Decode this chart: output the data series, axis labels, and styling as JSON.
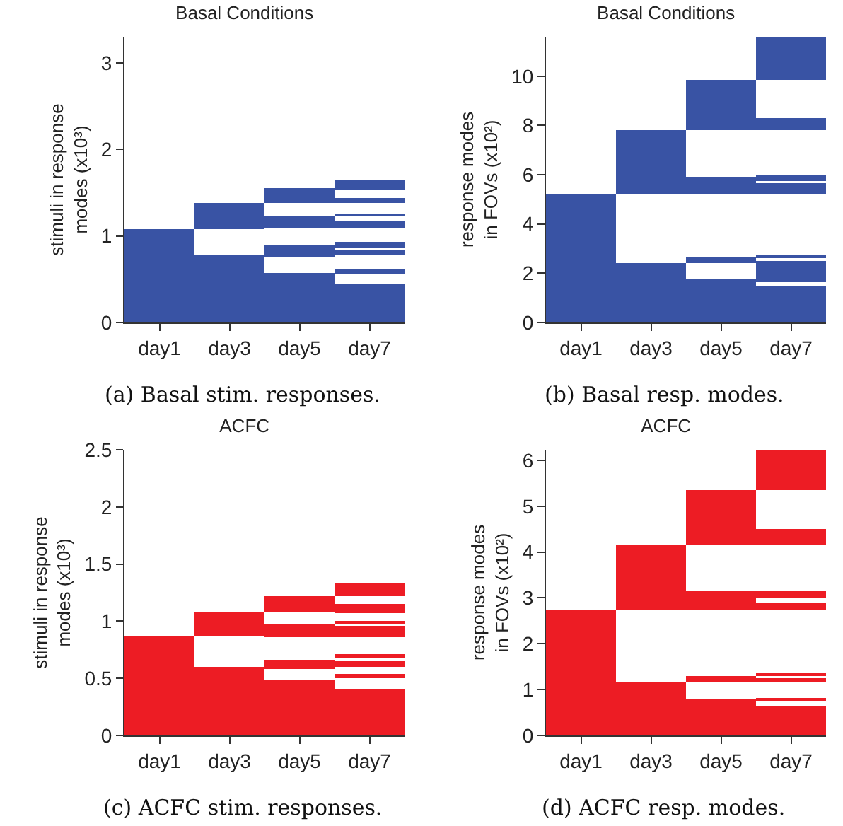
{
  "chart_data": [
    {
      "type": "bar",
      "title": "Basal Conditions",
      "ylabel": "stimuli in response\nmodes (x10³)",
      "categories": [
        "day1",
        "day3",
        "day5",
        "day7"
      ],
      "ylim": [
        0,
        3.3
      ],
      "yticks": [
        0,
        1,
        2,
        3
      ],
      "annotations": [
        "(a) Basal stim. responses."
      ],
      "series": [
        {
          "color": "#3953a4",
          "base": [
            0,
            0,
            0,
            0
          ],
          "values": [
            1.08,
            0.78,
            0.57,
            0.44
          ]
        },
        {
          "color": "#3953a4",
          "base": [
            null,
            1.08,
            0.76,
            0.56
          ],
          "values": [
            null,
            0.3,
            0.13,
            0.06
          ]
        },
        {
          "color": "#3953a4",
          "base": [
            null,
            null,
            1.09,
            0.78
          ],
          "values": [
            null,
            null,
            0.14,
            0.06
          ]
        },
        {
          "color": "#3953a4",
          "base": [
            null,
            null,
            1.38,
            0.87
          ],
          "values": [
            null,
            null,
            0.17,
            0.06
          ]
        },
        {
          "color": "#3953a4",
          "base": [
            null,
            null,
            null,
            1.09
          ],
          "values": [
            null,
            null,
            null,
            0.09
          ]
        },
        {
          "color": "#3953a4",
          "base": [
            null,
            null,
            null,
            1.23
          ],
          "values": [
            null,
            null,
            null,
            0.03
          ]
        },
        {
          "color": "#3953a4",
          "base": [
            null,
            null,
            null,
            1.38
          ],
          "values": [
            null,
            null,
            null,
            0.06
          ]
        },
        {
          "color": "#3953a4",
          "base": [
            null,
            null,
            null,
            1.53
          ],
          "values": [
            null,
            null,
            null,
            0.12
          ]
        }
      ]
    },
    {
      "type": "bar",
      "title": "Basal Conditions",
      "ylabel": "response modes\nin FOVs (x10²)",
      "categories": [
        "day1",
        "day3",
        "day5",
        "day7"
      ],
      "ylim": [
        0,
        11.6
      ],
      "yticks": [
        0,
        2,
        4,
        6,
        8,
        10
      ],
      "annotations": [
        "(b) Basal resp. modes."
      ],
      "series": [
        {
          "color": "#3953a4",
          "base": [
            0,
            0,
            0,
            0
          ],
          "values": [
            5.2,
            2.4,
            1.75,
            1.5
          ]
        },
        {
          "color": "#3953a4",
          "base": [
            null,
            5.2,
            2.4,
            1.65
          ],
          "values": [
            null,
            2.6,
            0.26,
            0.85
          ]
        },
        {
          "color": "#3953a4",
          "base": [
            null,
            null,
            5.2,
            2.6
          ],
          "values": [
            null,
            null,
            0.72,
            0.15
          ]
        },
        {
          "color": "#3953a4",
          "base": [
            null,
            null,
            7.8,
            5.2
          ],
          "values": [
            null,
            null,
            2.05,
            0.45
          ]
        },
        {
          "color": "#3953a4",
          "base": [
            null,
            null,
            null,
            5.75
          ],
          "values": [
            null,
            null,
            null,
            0.25
          ]
        },
        {
          "color": "#3953a4",
          "base": [
            null,
            null,
            null,
            7.8
          ],
          "values": [
            null,
            null,
            null,
            0.5
          ]
        },
        {
          "color": "#3953a4",
          "base": [
            null,
            null,
            null,
            9.85
          ],
          "values": [
            null,
            null,
            null,
            1.75
          ]
        }
      ]
    },
    {
      "type": "bar",
      "title": "ACFC",
      "ylabel": "stimuli in response\nmodes (x10³)",
      "categories": [
        "day1",
        "day3",
        "day5",
        "day7"
      ],
      "ylim": [
        0,
        2.5
      ],
      "yticks": [
        0,
        0.5,
        1,
        1.5,
        2,
        2.5
      ],
      "annotations": [
        "(c) ACFC stim. responses."
      ],
      "series": [
        {
          "color": "#ed1c24",
          "base": [
            0,
            0,
            0,
            0
          ],
          "values": [
            0.87,
            0.6,
            0.48,
            0.41
          ]
        },
        {
          "color": "#ed1c24",
          "base": [
            null,
            0.87,
            0.58,
            0.5
          ],
          "values": [
            null,
            0.21,
            0.08,
            0.04
          ]
        },
        {
          "color": "#ed1c24",
          "base": [
            null,
            null,
            0.86,
            0.6
          ],
          "values": [
            null,
            null,
            0.11,
            0.05
          ]
        },
        {
          "color": "#ed1c24",
          "base": [
            null,
            null,
            1.08,
            0.68
          ],
          "values": [
            null,
            null,
            0.14,
            0.03
          ]
        },
        {
          "color": "#ed1c24",
          "base": [
            null,
            null,
            null,
            0.86
          ],
          "values": [
            null,
            null,
            null,
            0.1
          ]
        },
        {
          "color": "#ed1c24",
          "base": [
            null,
            null,
            null,
            0.98
          ],
          "values": [
            null,
            null,
            null,
            0.02
          ]
        },
        {
          "color": "#ed1c24",
          "base": [
            null,
            null,
            null,
            1.07
          ],
          "values": [
            null,
            null,
            null,
            0.08
          ]
        },
        {
          "color": "#ed1c24",
          "base": [
            null,
            null,
            null,
            1.22
          ],
          "values": [
            null,
            null,
            null,
            0.11
          ]
        }
      ]
    },
    {
      "type": "bar",
      "title": "ACFC",
      "ylabel": "response modes\nin FOVs (x10²)",
      "categories": [
        "day1",
        "day3",
        "day5",
        "day7"
      ],
      "ylim": [
        0,
        6.23
      ],
      "yticks": [
        0,
        1,
        2,
        3,
        4,
        5,
        6
      ],
      "annotations": [
        "(d) ACFC resp. modes."
      ],
      "series": [
        {
          "color": "#ed1c24",
          "base": [
            0,
            0,
            0,
            0
          ],
          "values": [
            2.75,
            1.15,
            0.8,
            0.65
          ]
        },
        {
          "color": "#ed1c24",
          "base": [
            null,
            2.75,
            1.15,
            0.75
          ],
          "values": [
            null,
            1.4,
            0.15,
            0.07
          ]
        },
        {
          "color": "#ed1c24",
          "base": [
            null,
            null,
            2.75,
            1.15
          ],
          "values": [
            null,
            null,
            0.4,
            0.1
          ]
        },
        {
          "color": "#ed1c24",
          "base": [
            null,
            null,
            4.15,
            1.3
          ],
          "values": [
            null,
            null,
            1.2,
            0.05
          ]
        },
        {
          "color": "#ed1c24",
          "base": [
            null,
            null,
            null,
            2.75
          ],
          "values": [
            null,
            null,
            null,
            0.15
          ]
        },
        {
          "color": "#ed1c24",
          "base": [
            null,
            null,
            null,
            3.0
          ],
          "values": [
            null,
            null,
            null,
            0.15
          ]
        },
        {
          "color": "#ed1c24",
          "base": [
            null,
            null,
            null,
            4.15
          ],
          "values": [
            null,
            null,
            null,
            0.35
          ]
        },
        {
          "color": "#ed1c24",
          "base": [
            null,
            null,
            null,
            5.35
          ],
          "values": [
            null,
            null,
            null,
            0.88
          ]
        }
      ]
    }
  ]
}
